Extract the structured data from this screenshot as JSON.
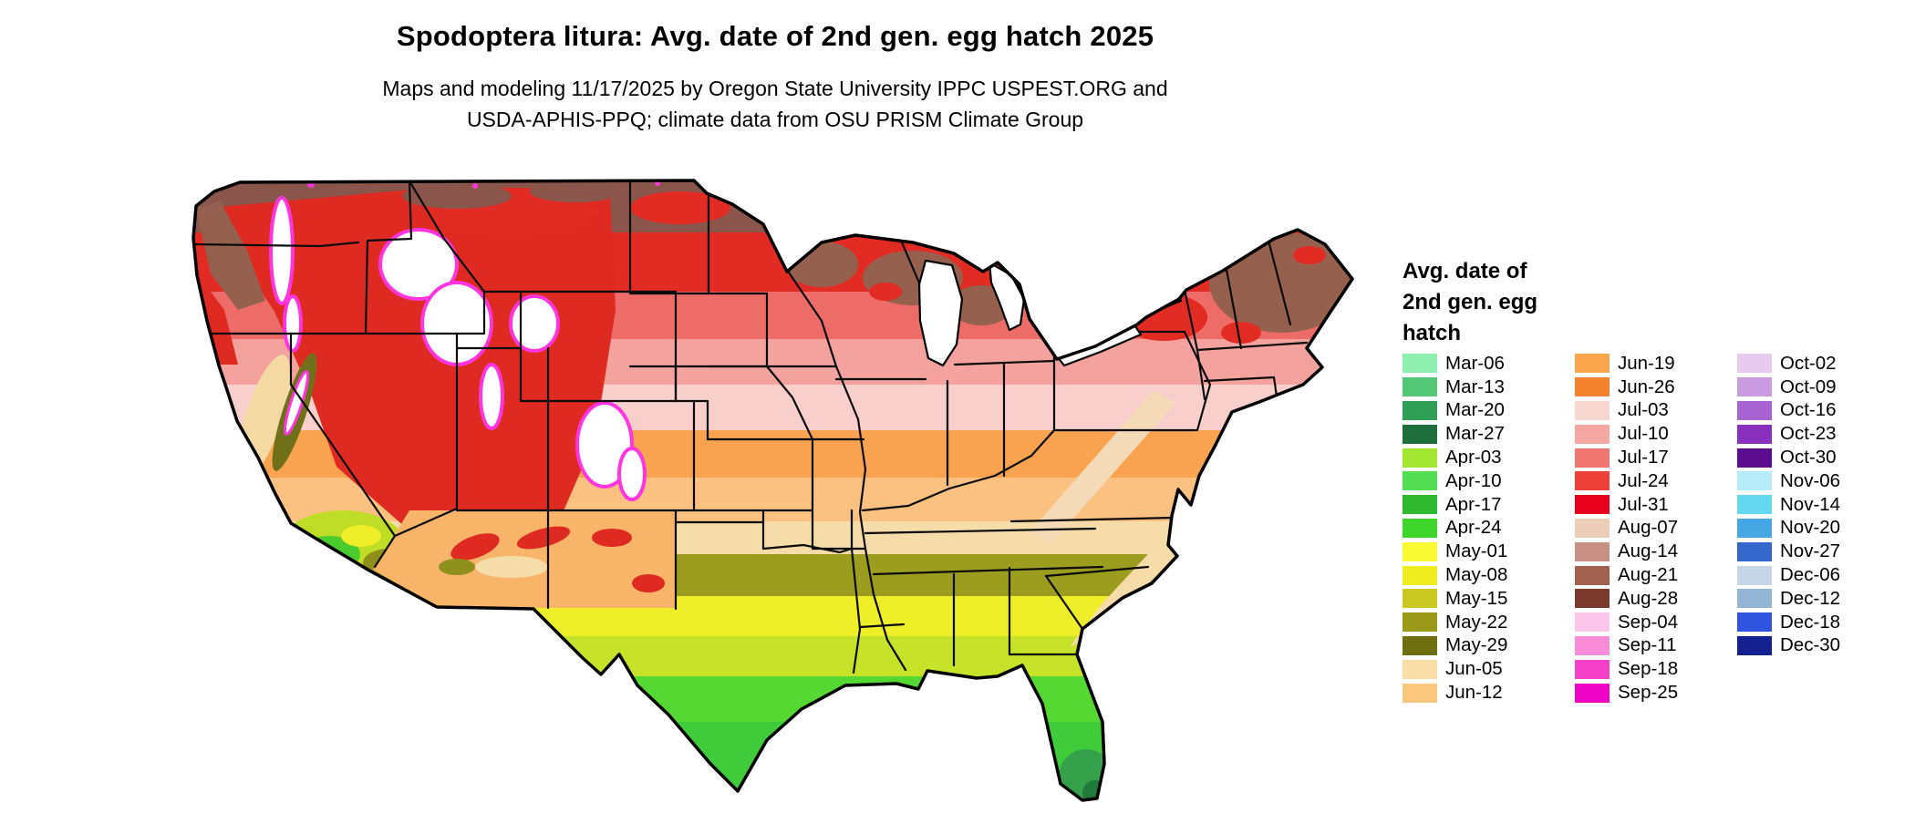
{
  "title": "Spodoptera litura: Avg. date of 2nd gen. egg hatch 2025",
  "subtitle": {
    "line1": "Maps and modeling 11/17/2025 by Oregon State University IPPC USPEST.ORG and",
    "line2": "USDA-APHIS-PPQ; climate data from OSU PRISM Climate Group"
  },
  "legend": {
    "title_line1": "Avg. date of",
    "title_line2": "2nd gen. egg",
    "title_line3": "hatch",
    "columns": [
      {
        "entries": [
          {
            "label": "Mar-06",
            "color": "#8FEFAF"
          },
          {
            "label": "Mar-13",
            "color": "#55C878"
          },
          {
            "label": "Mar-20",
            "color": "#2E9E54"
          },
          {
            "label": "Mar-27",
            "color": "#1E6F3C"
          },
          {
            "label": "Apr-03",
            "color": "#A2E632"
          },
          {
            "label": "Apr-10",
            "color": "#52DD52"
          },
          {
            "label": "Apr-17",
            "color": "#2FB92F"
          },
          {
            "label": "Apr-24",
            "color": "#3ED62B"
          },
          {
            "label": "May-01",
            "color": "#FAFA33"
          },
          {
            "label": "May-08",
            "color": "#EDED1F"
          },
          {
            "label": "May-15",
            "color": "#C9C922"
          },
          {
            "label": "May-22",
            "color": "#9A9A18"
          },
          {
            "label": "May-29",
            "color": "#6F6F10"
          },
          {
            "label": "Jun-05",
            "color": "#F7DDA6"
          },
          {
            "label": "Jun-12",
            "color": "#FBC77E"
          }
        ]
      },
      {
        "entries": [
          {
            "label": "Jun-19",
            "color": "#FAA54C"
          },
          {
            "label": "Jun-26",
            "color": "#F5822E"
          },
          {
            "label": "Jul-03",
            "color": "#F8D7D0"
          },
          {
            "label": "Jul-10",
            "color": "#F5A8A3"
          },
          {
            "label": "Jul-17",
            "color": "#F07672"
          },
          {
            "label": "Jul-24",
            "color": "#EE3F38"
          },
          {
            "label": "Jul-31",
            "color": "#E8001C"
          },
          {
            "label": "Aug-07",
            "color": "#ECCDB8"
          },
          {
            "label": "Aug-14",
            "color": "#C99186"
          },
          {
            "label": "Aug-21",
            "color": "#A2604F"
          },
          {
            "label": "Aug-28",
            "color": "#7C3A2E"
          },
          {
            "label": "Sep-04",
            "color": "#FBC6E9"
          },
          {
            "label": "Sep-11",
            "color": "#F98BD9"
          },
          {
            "label": "Sep-18",
            "color": "#F541C9"
          },
          {
            "label": "Sep-25",
            "color": "#F004C6"
          }
        ]
      },
      {
        "entries": [
          {
            "label": "Oct-02",
            "color": "#E6CBEF"
          },
          {
            "label": "Oct-09",
            "color": "#CB9BE2"
          },
          {
            "label": "Oct-16",
            "color": "#A763D2"
          },
          {
            "label": "Oct-23",
            "color": "#8A30BF"
          },
          {
            "label": "Oct-30",
            "color": "#5C0D8F"
          },
          {
            "label": "Nov-06",
            "color": "#B5ECF7"
          },
          {
            "label": "Nov-14",
            "color": "#63D8F0"
          },
          {
            "label": "Nov-20",
            "color": "#45A8E5"
          },
          {
            "label": "Nov-27",
            "color": "#3468CD"
          },
          {
            "label": "Dec-06",
            "color": "#C7D6E6"
          },
          {
            "label": "Dec-12",
            "color": "#93B5D6"
          },
          {
            "label": "Dec-18",
            "color": "#2F55E0"
          },
          {
            "label": "Dec-30",
            "color": "#14208F"
          }
        ]
      }
    ]
  }
}
